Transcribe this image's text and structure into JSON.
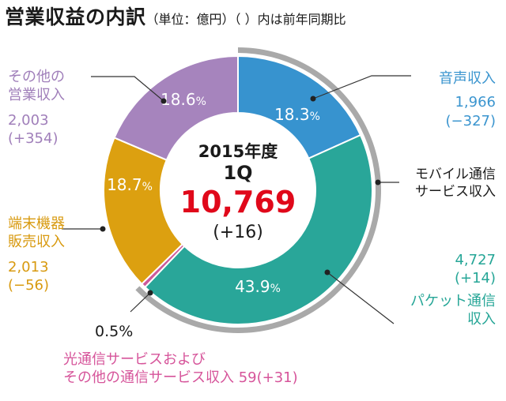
{
  "header": {
    "title": "営業収益の内訳",
    "subtitle": "（単位：億円）（ ）内は前年同期比"
  },
  "center": {
    "period": "2015年度",
    "quarter": "1Q",
    "total": "10,769",
    "change": "(+16)"
  },
  "colors": {
    "voice": "#3793cf",
    "mobile": "#29a699",
    "fiber": "#cc5a9a",
    "device": "#dca010",
    "other": "#a684bd",
    "outer_ring": "#a9a9a9"
  },
  "labels": {
    "voice": {
      "name": "音声収入",
      "value": "1,966",
      "change": "(−327)"
    },
    "mobile": {
      "name_line1": "モバイル通信",
      "name_line2": "サービス収入"
    },
    "packet": {
      "value": "4,727",
      "change": "(+14)",
      "name_line1": "パケット通信",
      "name_line2": "収入"
    },
    "fiber": {
      "line1": "光通信サービスおよび",
      "line2": "その他の通信サービス収入 59(+31)",
      "pct": "0.5%"
    },
    "device": {
      "name_line1": "端末機器",
      "name_line2": "販売収入",
      "value": "2,013",
      "change": "(−56)"
    },
    "other": {
      "name_line1": "その他の",
      "name_line2": "営業収入",
      "value": "2,003",
      "change": "(+354)"
    }
  },
  "chart_data": {
    "type": "pie",
    "total": 10769,
    "total_change": 16,
    "slices": [
      {
        "name": "音声収入",
        "value": 1966,
        "change": -327,
        "percent": 18.3,
        "percent_label": "18.3%",
        "color": "#3793cf"
      },
      {
        "name": "パケット通信収入",
        "value": 4727,
        "change": 14,
        "percent": 43.9,
        "percent_label": "43.9%",
        "color": "#29a699"
      },
      {
        "name": "光通信サービスおよびその他の通信サービス収入",
        "value": 59,
        "change": 31,
        "percent": 0.5,
        "percent_label": "0.5%",
        "color": "#cc5a9a"
      },
      {
        "name": "端末機器販売収入",
        "value": 2013,
        "change": -56,
        "percent": 18.7,
        "percent_label": "18.7%",
        "color": "#dca010"
      },
      {
        "name": "その他の営業収入",
        "value": 2003,
        "change": 354,
        "percent": 18.6,
        "percent_label": "18.6%",
        "color": "#a684bd"
      }
    ],
    "outer_group": {
      "name": "モバイル通信サービス収入",
      "members": [
        "音声収入",
        "パケット通信収入",
        "光通信サービスおよびその他の通信サービス収入"
      ]
    }
  }
}
